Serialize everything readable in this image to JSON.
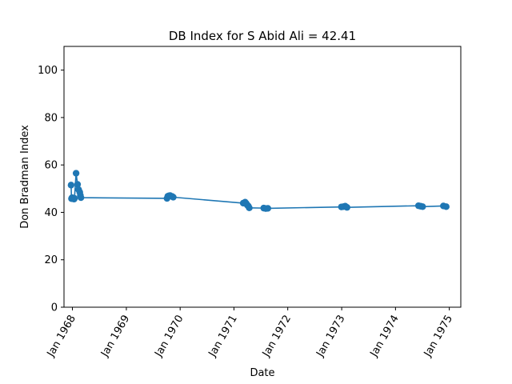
{
  "chart_data": {
    "type": "line",
    "title": "DB Index for S Abid Ali = 42.41",
    "xlabel": "Date",
    "ylabel": "Don Bradman Index",
    "ylim": [
      0,
      110
    ],
    "xlim": [
      "1967-11-05",
      "1975-03-20"
    ],
    "yticks": [
      0,
      20,
      40,
      60,
      80,
      100
    ],
    "xticks": [
      {
        "date": "1968-01-01",
        "label": "Jan 1968"
      },
      {
        "date": "1969-01-01",
        "label": "Jan 1969"
      },
      {
        "date": "1970-01-01",
        "label": "Jan 1970"
      },
      {
        "date": "1971-01-01",
        "label": "Jan 1971"
      },
      {
        "date": "1972-01-01",
        "label": "Jan 1972"
      },
      {
        "date": "1973-01-01",
        "label": "Jan 1973"
      },
      {
        "date": "1974-01-01",
        "label": "Jan 1974"
      },
      {
        "date": "1975-01-01",
        "label": "Jan 1975"
      }
    ],
    "grid": false,
    "series": [
      {
        "color": "#1f77b4",
        "points": [
          {
            "x": "1967-12-23",
            "y": 51.5
          },
          {
            "x": "1967-12-26",
            "y": 45.8
          },
          {
            "x": "1967-12-30",
            "y": 46.2
          },
          {
            "x": "1968-01-12",
            "y": 45.6
          },
          {
            "x": "1968-01-15",
            "y": 45.9
          },
          {
            "x": "1968-01-26",
            "y": 56.5
          },
          {
            "x": "1968-02-05",
            "y": 51.8
          },
          {
            "x": "1968-02-12",
            "y": 49.6
          },
          {
            "x": "1968-02-20",
            "y": 48.5
          },
          {
            "x": "1968-02-24",
            "y": 47.2
          },
          {
            "x": "1968-02-28",
            "y": 46.2
          },
          {
            "x": "1969-10-04",
            "y": 45.9
          },
          {
            "x": "1969-10-09",
            "y": 46.8
          },
          {
            "x": "1969-10-18",
            "y": 47.0
          },
          {
            "x": "1969-10-25",
            "y": 47.1
          },
          {
            "x": "1969-11-08",
            "y": 46.7
          },
          {
            "x": "1969-11-15",
            "y": 46.4
          },
          {
            "x": "1971-03-05",
            "y": 43.9
          },
          {
            "x": "1971-03-18",
            "y": 44.3
          },
          {
            "x": "1971-03-25",
            "y": 43.8
          },
          {
            "x": "1971-04-01",
            "y": 43.1
          },
          {
            "x": "1971-04-09",
            "y": 42.6
          },
          {
            "x": "1971-04-15",
            "y": 41.9
          },
          {
            "x": "1971-07-22",
            "y": 41.8
          },
          {
            "x": "1971-08-05",
            "y": 41.6
          },
          {
            "x": "1971-08-19",
            "y": 41.7
          },
          {
            "x": "1972-12-30",
            "y": 42.3
          },
          {
            "x": "1973-01-12",
            "y": 42.4
          },
          {
            "x": "1973-01-25",
            "y": 42.6
          },
          {
            "x": "1973-02-06",
            "y": 42.1
          },
          {
            "x": "1974-06-06",
            "y": 42.8
          },
          {
            "x": "1974-06-20",
            "y": 42.6
          },
          {
            "x": "1974-07-04",
            "y": 42.4
          },
          {
            "x": "1974-11-22",
            "y": 42.7
          },
          {
            "x": "1974-12-11",
            "y": 42.4
          }
        ]
      }
    ]
  }
}
